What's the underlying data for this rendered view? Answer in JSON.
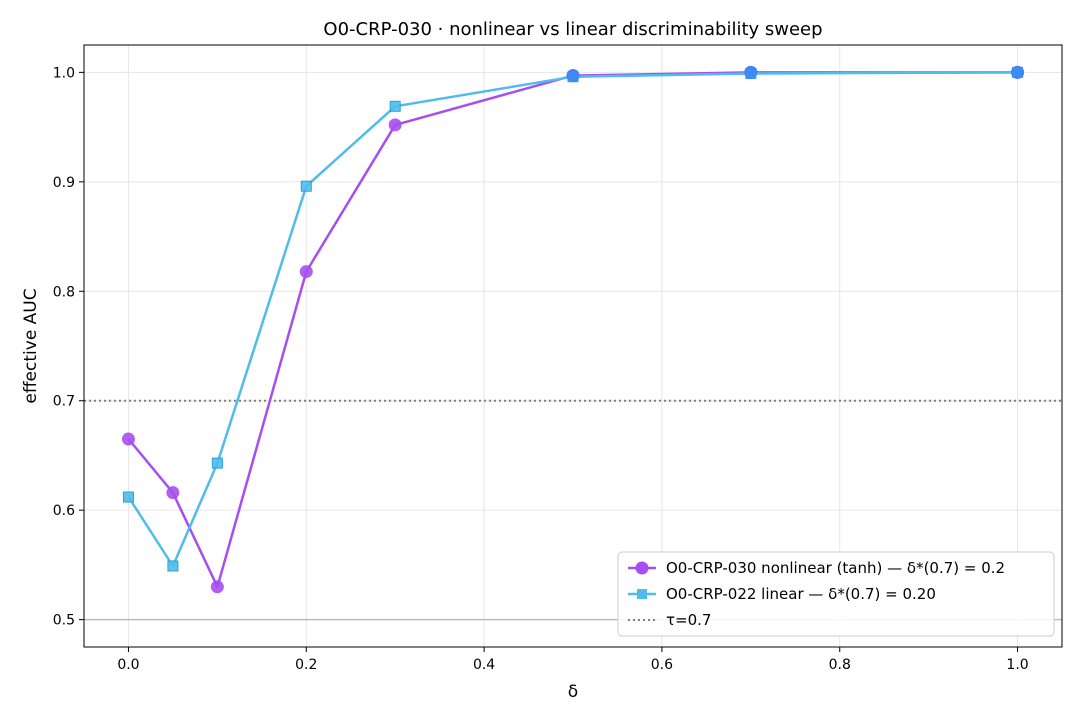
{
  "chart_data": {
    "type": "line",
    "title": "O0-CRP-030 · nonlinear vs linear discriminability sweep",
    "xlabel": "δ",
    "ylabel": "effective AUC",
    "xlim": [
      -0.05,
      1.05
    ],
    "ylim": [
      0.475,
      1.025
    ],
    "xticks": [
      0.0,
      0.2,
      0.4,
      0.6,
      0.8,
      1.0
    ],
    "xtick_labels": [
      "0.0",
      "0.2",
      "0.4",
      "0.6",
      "0.8",
      "1.0"
    ],
    "yticks": [
      0.5,
      0.6,
      0.7,
      0.8,
      0.9,
      1.0
    ],
    "ytick_labels": [
      "0.5",
      "0.6",
      "0.7",
      "0.8",
      "0.9",
      "1.0"
    ],
    "grid": true,
    "legend_position": "lower-right",
    "x": [
      0.0,
      0.05,
      0.1,
      0.2,
      0.3,
      0.5,
      0.7,
      1.0
    ],
    "series": [
      {
        "name": "O0-CRP-030 nonlinear (tanh) — δ*(0.7) = 0.2",
        "values": [
          0.665,
          0.616,
          0.53,
          0.818,
          0.952,
          0.997,
          1.0,
          1.0
        ],
        "color": "#a64ff0",
        "marker": "circle"
      },
      {
        "name": "O0-CRP-022 linear — δ*(0.7) = 0.20",
        "values": [
          0.612,
          0.549,
          0.643,
          0.896,
          0.969,
          0.996,
          0.999,
          1.0
        ],
        "color": "#4fbcec",
        "marker": "square"
      }
    ],
    "hlines": [
      {
        "y": 0.7,
        "style": "dotted",
        "color": "#808080",
        "label": "τ=0.7"
      },
      {
        "y": 0.5,
        "style": "solid",
        "color": "#bdbdbd",
        "label": ""
      }
    ]
  }
}
